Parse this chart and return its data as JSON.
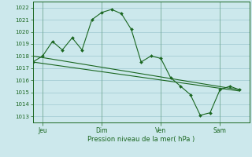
{
  "xlabel": "Pression niveau de la mer( hPa )",
  "background_color": "#cce8ec",
  "grid_color": "#9ec8d0",
  "line_color": "#1a6620",
  "ylim": [
    1012.5,
    1022.5
  ],
  "yticks": [
    1013,
    1014,
    1015,
    1016,
    1017,
    1018,
    1019,
    1020,
    1021,
    1022
  ],
  "x_tick_labels": [
    "Jeu",
    "Dim",
    "Ven",
    "Sam"
  ],
  "x_tick_positions": [
    1,
    7,
    13,
    19
  ],
  "xlim": [
    0,
    22
  ],
  "series1_x": [
    0,
    1,
    2,
    3,
    4,
    5,
    6,
    7,
    8,
    9,
    10,
    11,
    12,
    13,
    14,
    15,
    16,
    17,
    18,
    19,
    20,
    21
  ],
  "series1_y": [
    1017.5,
    1018.0,
    1019.2,
    1018.5,
    1019.5,
    1018.5,
    1021.0,
    1021.6,
    1021.85,
    1021.5,
    1020.2,
    1017.5,
    1018.0,
    1017.8,
    1016.2,
    1015.5,
    1014.8,
    1013.1,
    1013.3,
    1015.2,
    1015.5,
    1015.2
  ],
  "series2_x": [
    0,
    21
  ],
  "series2_y": [
    1017.5,
    1015.1
  ],
  "series3_x": [
    0,
    21
  ],
  "series3_y": [
    1018.0,
    1015.2
  ],
  "vlines": [
    1,
    7,
    13,
    19
  ]
}
